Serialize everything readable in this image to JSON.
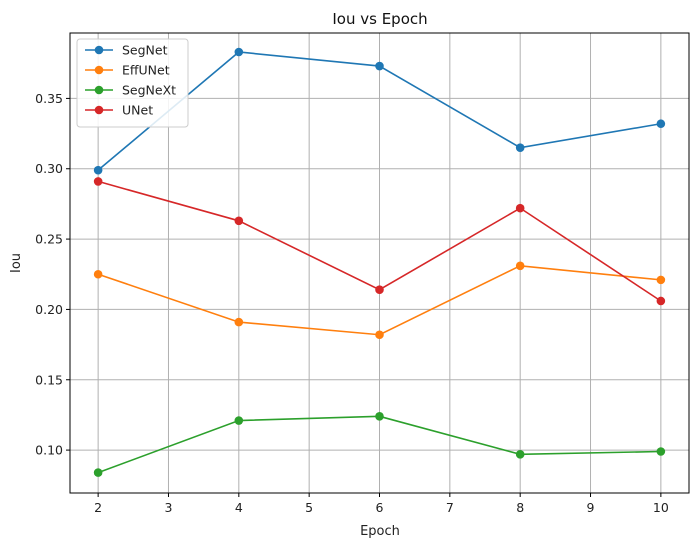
{
  "chart_data": {
    "type": "line",
    "title": "Iou vs Epoch",
    "xlabel": "Epoch",
    "ylabel": "Iou",
    "x": [
      2,
      4,
      6,
      8,
      10
    ],
    "xlim": [
      1.6,
      10.4
    ],
    "ylim": [
      0.0695,
      0.3965
    ],
    "xticks": [
      "2",
      "3",
      "4",
      "5",
      "6",
      "7",
      "8",
      "9",
      "10"
    ],
    "yticks": [
      "0.10",
      "0.15",
      "0.20",
      "0.25",
      "0.30",
      "0.35"
    ],
    "grid": true,
    "legend_position": "top-left",
    "marker": "circle",
    "series": [
      {
        "name": "SegNet",
        "color": "#1f77b4",
        "values": [
          0.299,
          0.383,
          0.373,
          0.315,
          0.332
        ]
      },
      {
        "name": "EffUNet",
        "color": "#ff7f0e",
        "values": [
          0.225,
          0.191,
          0.182,
          0.231,
          0.221
        ]
      },
      {
        "name": "SegNeXt",
        "color": "#2ca02c",
        "values": [
          0.084,
          0.121,
          0.124,
          0.097,
          0.099
        ]
      },
      {
        "name": "UNet",
        "color": "#d62728",
        "values": [
          0.291,
          0.263,
          0.214,
          0.272,
          0.206
        ]
      }
    ]
  }
}
